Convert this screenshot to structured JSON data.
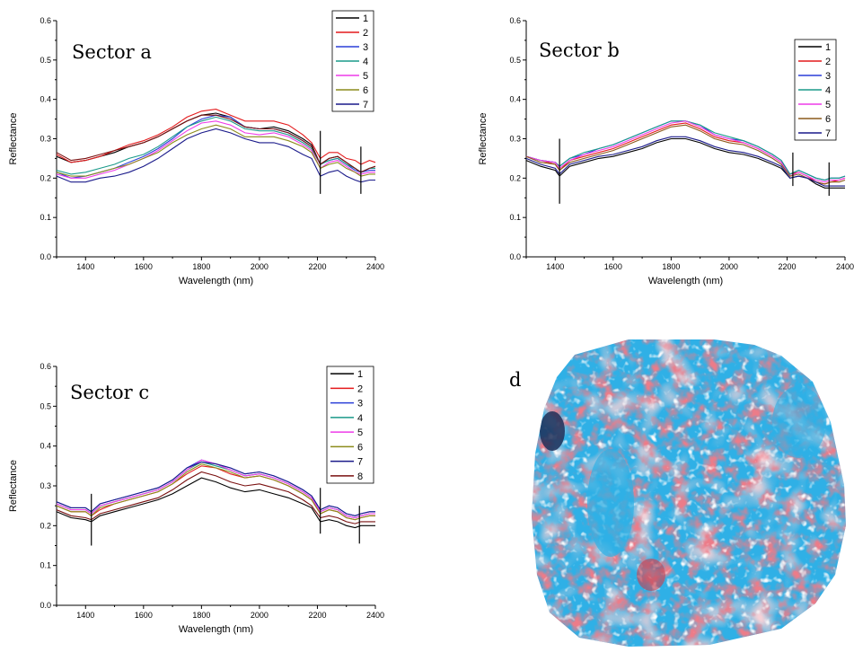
{
  "chart_data": [
    {
      "type": "line",
      "title": "Sector a",
      "xlabel": "Wavelength (nm)",
      "ylabel": "Reflectance",
      "xlim": [
        1300,
        2400
      ],
      "ylim": [
        0.0,
        0.6
      ],
      "xticks": [
        1400,
        1600,
        1800,
        2000,
        2200,
        2400
      ],
      "xtick_labels": [
        "1400",
        "1600",
        "1800",
        "2000",
        "2200",
        "2400"
      ],
      "yticks": [
        0.0,
        0.1,
        0.2,
        0.3,
        0.4,
        0.5,
        0.6
      ],
      "ytick_labels": [
        "0.0",
        "0.1",
        "0.2",
        "0.3",
        "0.4",
        "0.5",
        "0.6"
      ],
      "legend_position": "top-right",
      "grid": false,
      "markers": [
        {
          "x": 2210,
          "y": [
            0.16,
            0.32
          ]
        },
        {
          "x": 2350,
          "y": [
            0.16,
            0.28
          ]
        }
      ],
      "x": [
        1300,
        1350,
        1400,
        1450,
        1500,
        1550,
        1600,
        1650,
        1700,
        1750,
        1800,
        1850,
        1900,
        1950,
        2000,
        2050,
        2100,
        2150,
        2180,
        2210,
        2240,
        2270,
        2300,
        2330,
        2350,
        2380,
        2400
      ],
      "series": [
        {
          "name": "1",
          "color": "#000000",
          "values": [
            0.255,
            0.24,
            0.245,
            0.255,
            0.265,
            0.28,
            0.29,
            0.305,
            0.325,
            0.345,
            0.36,
            0.365,
            0.355,
            0.33,
            0.325,
            0.33,
            0.32,
            0.3,
            0.285,
            0.235,
            0.25,
            0.255,
            0.24,
            0.225,
            0.215,
            0.225,
            0.225
          ]
        },
        {
          "name": "2",
          "color": "#e41a1c",
          "values": [
            0.26,
            0.24,
            0.245,
            0.255,
            0.27,
            0.285,
            0.295,
            0.31,
            0.33,
            0.355,
            0.37,
            0.375,
            0.36,
            0.345,
            0.345,
            0.345,
            0.335,
            0.31,
            0.29,
            0.25,
            0.265,
            0.265,
            0.25,
            0.245,
            0.235,
            0.245,
            0.24
          ]
        },
        {
          "name": "3",
          "color": "#2b3fd8",
          "values": [
            0.215,
            0.2,
            0.205,
            0.215,
            0.225,
            0.24,
            0.255,
            0.275,
            0.3,
            0.33,
            0.35,
            0.36,
            0.355,
            0.33,
            0.325,
            0.325,
            0.315,
            0.295,
            0.28,
            0.235,
            0.245,
            0.25,
            0.235,
            0.22,
            0.215,
            0.22,
            0.22
          ]
        },
        {
          "name": "4",
          "color": "#1a9a8a",
          "values": [
            0.22,
            0.21,
            0.215,
            0.225,
            0.235,
            0.25,
            0.26,
            0.28,
            0.305,
            0.33,
            0.345,
            0.355,
            0.345,
            0.325,
            0.32,
            0.32,
            0.31,
            0.29,
            0.275,
            0.235,
            0.245,
            0.25,
            0.235,
            0.225,
            0.215,
            0.225,
            0.225
          ]
        },
        {
          "name": "5",
          "color": "#ee3ce8",
          "values": [
            0.21,
            0.2,
            0.2,
            0.21,
            0.22,
            0.235,
            0.25,
            0.27,
            0.295,
            0.32,
            0.34,
            0.345,
            0.335,
            0.315,
            0.31,
            0.315,
            0.305,
            0.285,
            0.27,
            0.225,
            0.24,
            0.245,
            0.23,
            0.215,
            0.21,
            0.215,
            0.215
          ]
        },
        {
          "name": "6",
          "color": "#8c8c1c",
          "values": [
            0.215,
            0.205,
            0.205,
            0.215,
            0.225,
            0.235,
            0.25,
            0.265,
            0.29,
            0.31,
            0.325,
            0.335,
            0.325,
            0.305,
            0.305,
            0.305,
            0.295,
            0.28,
            0.265,
            0.225,
            0.235,
            0.24,
            0.225,
            0.215,
            0.205,
            0.21,
            0.21
          ]
        },
        {
          "name": "7",
          "color": "#1a1a8a",
          "values": [
            0.205,
            0.19,
            0.19,
            0.2,
            0.205,
            0.215,
            0.23,
            0.25,
            0.275,
            0.3,
            0.315,
            0.325,
            0.315,
            0.3,
            0.29,
            0.29,
            0.28,
            0.26,
            0.25,
            0.205,
            0.215,
            0.22,
            0.205,
            0.195,
            0.19,
            0.195,
            0.195
          ]
        },
        {
          "color": "#7a1010",
          "values": [
            0.265,
            0.245,
            0.25,
            0.26,
            0.27,
            0.28,
            0.29,
            0.305,
            0.325,
            0.345,
            0.36,
            0.36,
            0.35,
            0.33,
            0.325,
            0.325,
            0.315,
            0.295,
            0.28,
            0.235,
            0.25,
            0.255,
            0.24,
            0.225,
            0.215,
            0.225,
            0.23
          ]
        }
      ]
    },
    {
      "type": "line",
      "title": "Sector b",
      "xlabel": "Wavelength (nm)",
      "ylabel": "Reflectance",
      "xlim": [
        1300,
        2400
      ],
      "ylim": [
        0.0,
        0.6
      ],
      "xticks": [
        1400,
        1600,
        1800,
        2000,
        2200,
        2400
      ],
      "xtick_labels": [
        "1400",
        "1600",
        "1800",
        "2000",
        "2200",
        "2400"
      ],
      "yticks": [
        0.0,
        0.1,
        0.2,
        0.3,
        0.4,
        0.5,
        0.6
      ],
      "ytick_labels": [
        "0.0",
        "0.1",
        "0.2",
        "0.3",
        "0.4",
        "0.5",
        "0.6"
      ],
      "legend_position": "top-right",
      "grid": false,
      "markers": [
        {
          "x": 1415,
          "y": [
            0.135,
            0.3
          ]
        },
        {
          "x": 2220,
          "y": [
            0.18,
            0.265
          ]
        },
        {
          "x": 2345,
          "y": [
            0.155,
            0.24
          ]
        }
      ],
      "x": [
        1300,
        1350,
        1400,
        1415,
        1450,
        1500,
        1550,
        1600,
        1650,
        1700,
        1750,
        1800,
        1850,
        1900,
        1950,
        2000,
        2050,
        2100,
        2150,
        2180,
        2210,
        2240,
        2270,
        2300,
        2330,
        2350,
        2380,
        2400
      ],
      "series": [
        {
          "name": "1",
          "color": "#000000",
          "values": [
            0.245,
            0.23,
            0.22,
            0.205,
            0.23,
            0.24,
            0.25,
            0.255,
            0.265,
            0.275,
            0.29,
            0.3,
            0.3,
            0.29,
            0.275,
            0.265,
            0.26,
            0.25,
            0.235,
            0.225,
            0.2,
            0.205,
            0.2,
            0.185,
            0.175,
            0.175,
            0.175,
            0.175
          ]
        },
        {
          "name": "2",
          "color": "#e41a1c",
          "values": [
            0.255,
            0.245,
            0.235,
            0.22,
            0.245,
            0.255,
            0.265,
            0.275,
            0.29,
            0.305,
            0.32,
            0.335,
            0.34,
            0.325,
            0.305,
            0.295,
            0.29,
            0.275,
            0.255,
            0.24,
            0.21,
            0.215,
            0.205,
            0.19,
            0.185,
            0.19,
            0.195,
            0.2
          ]
        },
        {
          "name": "3",
          "color": "#2b3fd8",
          "values": [
            0.255,
            0.245,
            0.24,
            0.23,
            0.25,
            0.26,
            0.275,
            0.285,
            0.3,
            0.315,
            0.33,
            0.345,
            0.345,
            0.335,
            0.31,
            0.3,
            0.295,
            0.28,
            0.26,
            0.245,
            0.21,
            0.22,
            0.21,
            0.2,
            0.195,
            0.2,
            0.2,
            0.205
          ]
        },
        {
          "name": "4",
          "color": "#1a9a8a",
          "values": [
            0.255,
            0.245,
            0.24,
            0.23,
            0.25,
            0.265,
            0.275,
            0.285,
            0.3,
            0.315,
            0.33,
            0.345,
            0.345,
            0.335,
            0.315,
            0.305,
            0.295,
            0.28,
            0.26,
            0.245,
            0.21,
            0.22,
            0.21,
            0.2,
            0.195,
            0.2,
            0.2,
            0.205
          ]
        },
        {
          "name": "5",
          "color": "#ee3ce8",
          "values": [
            0.255,
            0.245,
            0.24,
            0.225,
            0.245,
            0.26,
            0.27,
            0.28,
            0.295,
            0.31,
            0.325,
            0.34,
            0.345,
            0.33,
            0.31,
            0.3,
            0.29,
            0.275,
            0.255,
            0.24,
            0.205,
            0.215,
            0.205,
            0.195,
            0.19,
            0.195,
            0.195,
            0.2
          ]
        },
        {
          "name": "6",
          "color": "#8c5a1c",
          "values": [
            0.255,
            0.24,
            0.235,
            0.22,
            0.24,
            0.25,
            0.26,
            0.27,
            0.285,
            0.3,
            0.315,
            0.33,
            0.335,
            0.32,
            0.3,
            0.29,
            0.285,
            0.27,
            0.25,
            0.235,
            0.205,
            0.21,
            0.2,
            0.19,
            0.185,
            0.19,
            0.19,
            0.195
          ]
        },
        {
          "name": "7",
          "color": "#1a1a8a",
          "values": [
            0.25,
            0.235,
            0.225,
            0.21,
            0.235,
            0.245,
            0.255,
            0.26,
            0.27,
            0.28,
            0.295,
            0.305,
            0.305,
            0.295,
            0.28,
            0.27,
            0.265,
            0.255,
            0.24,
            0.23,
            0.2,
            0.205,
            0.2,
            0.19,
            0.18,
            0.18,
            0.18,
            0.18
          ]
        }
      ]
    },
    {
      "type": "line",
      "title": "Sector c",
      "xlabel": "Wavelength (nm)",
      "ylabel": "Reflectance",
      "xlim": [
        1300,
        2400
      ],
      "ylim": [
        0.0,
        0.6
      ],
      "xticks": [
        1400,
        1600,
        1800,
        2000,
        2200,
        2400
      ],
      "xtick_labels": [
        "1400",
        "1600",
        "1800",
        "2000",
        "2200",
        "2400"
      ],
      "yticks": [
        0.0,
        0.1,
        0.2,
        0.3,
        0.4,
        0.5,
        0.6
      ],
      "ytick_labels": [
        "0.0",
        "0.1",
        "0.2",
        "0.3",
        "0.4",
        "0.5",
        "0.6"
      ],
      "legend_position": "top-right",
      "grid": false,
      "markers": [
        {
          "x": 1420,
          "y": [
            0.15,
            0.28
          ]
        },
        {
          "x": 2210,
          "y": [
            0.18,
            0.295
          ]
        },
        {
          "x": 2345,
          "y": [
            0.155,
            0.25
          ]
        }
      ],
      "x": [
        1300,
        1350,
        1400,
        1420,
        1450,
        1500,
        1550,
        1600,
        1650,
        1700,
        1750,
        1800,
        1850,
        1900,
        1950,
        2000,
        2050,
        2100,
        2150,
        2180,
        2210,
        2240,
        2270,
        2300,
        2330,
        2350,
        2380,
        2400
      ],
      "series": [
        {
          "name": "1",
          "color": "#000000",
          "values": [
            0.235,
            0.22,
            0.215,
            0.21,
            0.225,
            0.235,
            0.245,
            0.255,
            0.265,
            0.28,
            0.3,
            0.32,
            0.31,
            0.295,
            0.285,
            0.29,
            0.28,
            0.27,
            0.255,
            0.245,
            0.21,
            0.215,
            0.21,
            0.2,
            0.195,
            0.2,
            0.2,
            0.2
          ]
        },
        {
          "name": "2",
          "color": "#e41a1c",
          "values": [
            0.25,
            0.235,
            0.235,
            0.225,
            0.24,
            0.255,
            0.265,
            0.275,
            0.285,
            0.305,
            0.33,
            0.35,
            0.345,
            0.33,
            0.32,
            0.325,
            0.315,
            0.3,
            0.28,
            0.265,
            0.23,
            0.24,
            0.235,
            0.22,
            0.215,
            0.22,
            0.225,
            0.225
          ]
        },
        {
          "name": "3",
          "color": "#2b3fd8",
          "values": [
            0.26,
            0.245,
            0.245,
            0.235,
            0.255,
            0.265,
            0.275,
            0.285,
            0.295,
            0.315,
            0.345,
            0.365,
            0.355,
            0.345,
            0.33,
            0.335,
            0.325,
            0.31,
            0.29,
            0.275,
            0.24,
            0.25,
            0.245,
            0.23,
            0.225,
            0.23,
            0.235,
            0.235
          ]
        },
        {
          "name": "4",
          "color": "#1a9a8a",
          "values": [
            0.255,
            0.24,
            0.24,
            0.23,
            0.25,
            0.26,
            0.27,
            0.28,
            0.29,
            0.31,
            0.34,
            0.36,
            0.35,
            0.34,
            0.325,
            0.33,
            0.32,
            0.305,
            0.285,
            0.27,
            0.235,
            0.245,
            0.24,
            0.225,
            0.22,
            0.225,
            0.23,
            0.23
          ]
        },
        {
          "name": "5",
          "color": "#ee3ce8",
          "values": [
            0.255,
            0.24,
            0.24,
            0.23,
            0.25,
            0.26,
            0.27,
            0.28,
            0.29,
            0.31,
            0.34,
            0.365,
            0.355,
            0.34,
            0.325,
            0.33,
            0.32,
            0.305,
            0.285,
            0.27,
            0.235,
            0.245,
            0.24,
            0.225,
            0.22,
            0.225,
            0.23,
            0.23
          ]
        },
        {
          "name": "6",
          "color": "#8c8c1c",
          "values": [
            0.25,
            0.235,
            0.235,
            0.225,
            0.245,
            0.255,
            0.265,
            0.275,
            0.285,
            0.305,
            0.335,
            0.355,
            0.345,
            0.335,
            0.32,
            0.325,
            0.315,
            0.3,
            0.28,
            0.265,
            0.23,
            0.24,
            0.235,
            0.22,
            0.215,
            0.22,
            0.225,
            0.225
          ]
        },
        {
          "name": "7",
          "color": "#1a1a8a",
          "values": [
            0.26,
            0.245,
            0.245,
            0.235,
            0.255,
            0.265,
            0.275,
            0.285,
            0.295,
            0.315,
            0.345,
            0.36,
            0.355,
            0.345,
            0.33,
            0.335,
            0.325,
            0.31,
            0.29,
            0.275,
            0.24,
            0.25,
            0.245,
            0.23,
            0.225,
            0.23,
            0.235,
            0.235
          ]
        },
        {
          "name": "8",
          "color": "#7a1010",
          "values": [
            0.24,
            0.225,
            0.22,
            0.215,
            0.23,
            0.24,
            0.25,
            0.26,
            0.27,
            0.29,
            0.315,
            0.335,
            0.325,
            0.31,
            0.3,
            0.305,
            0.295,
            0.285,
            0.265,
            0.25,
            0.22,
            0.225,
            0.22,
            0.21,
            0.205,
            0.21,
            0.21,
            0.21
          ]
        }
      ]
    }
  ],
  "panel_d": {
    "label": "d",
    "colors": {
      "cyan": "#2fb0e6",
      "red": "#d6333f",
      "pink": "#eaa4ae",
      "white": "#f4f4f6",
      "dark": "#1d2f58"
    }
  }
}
